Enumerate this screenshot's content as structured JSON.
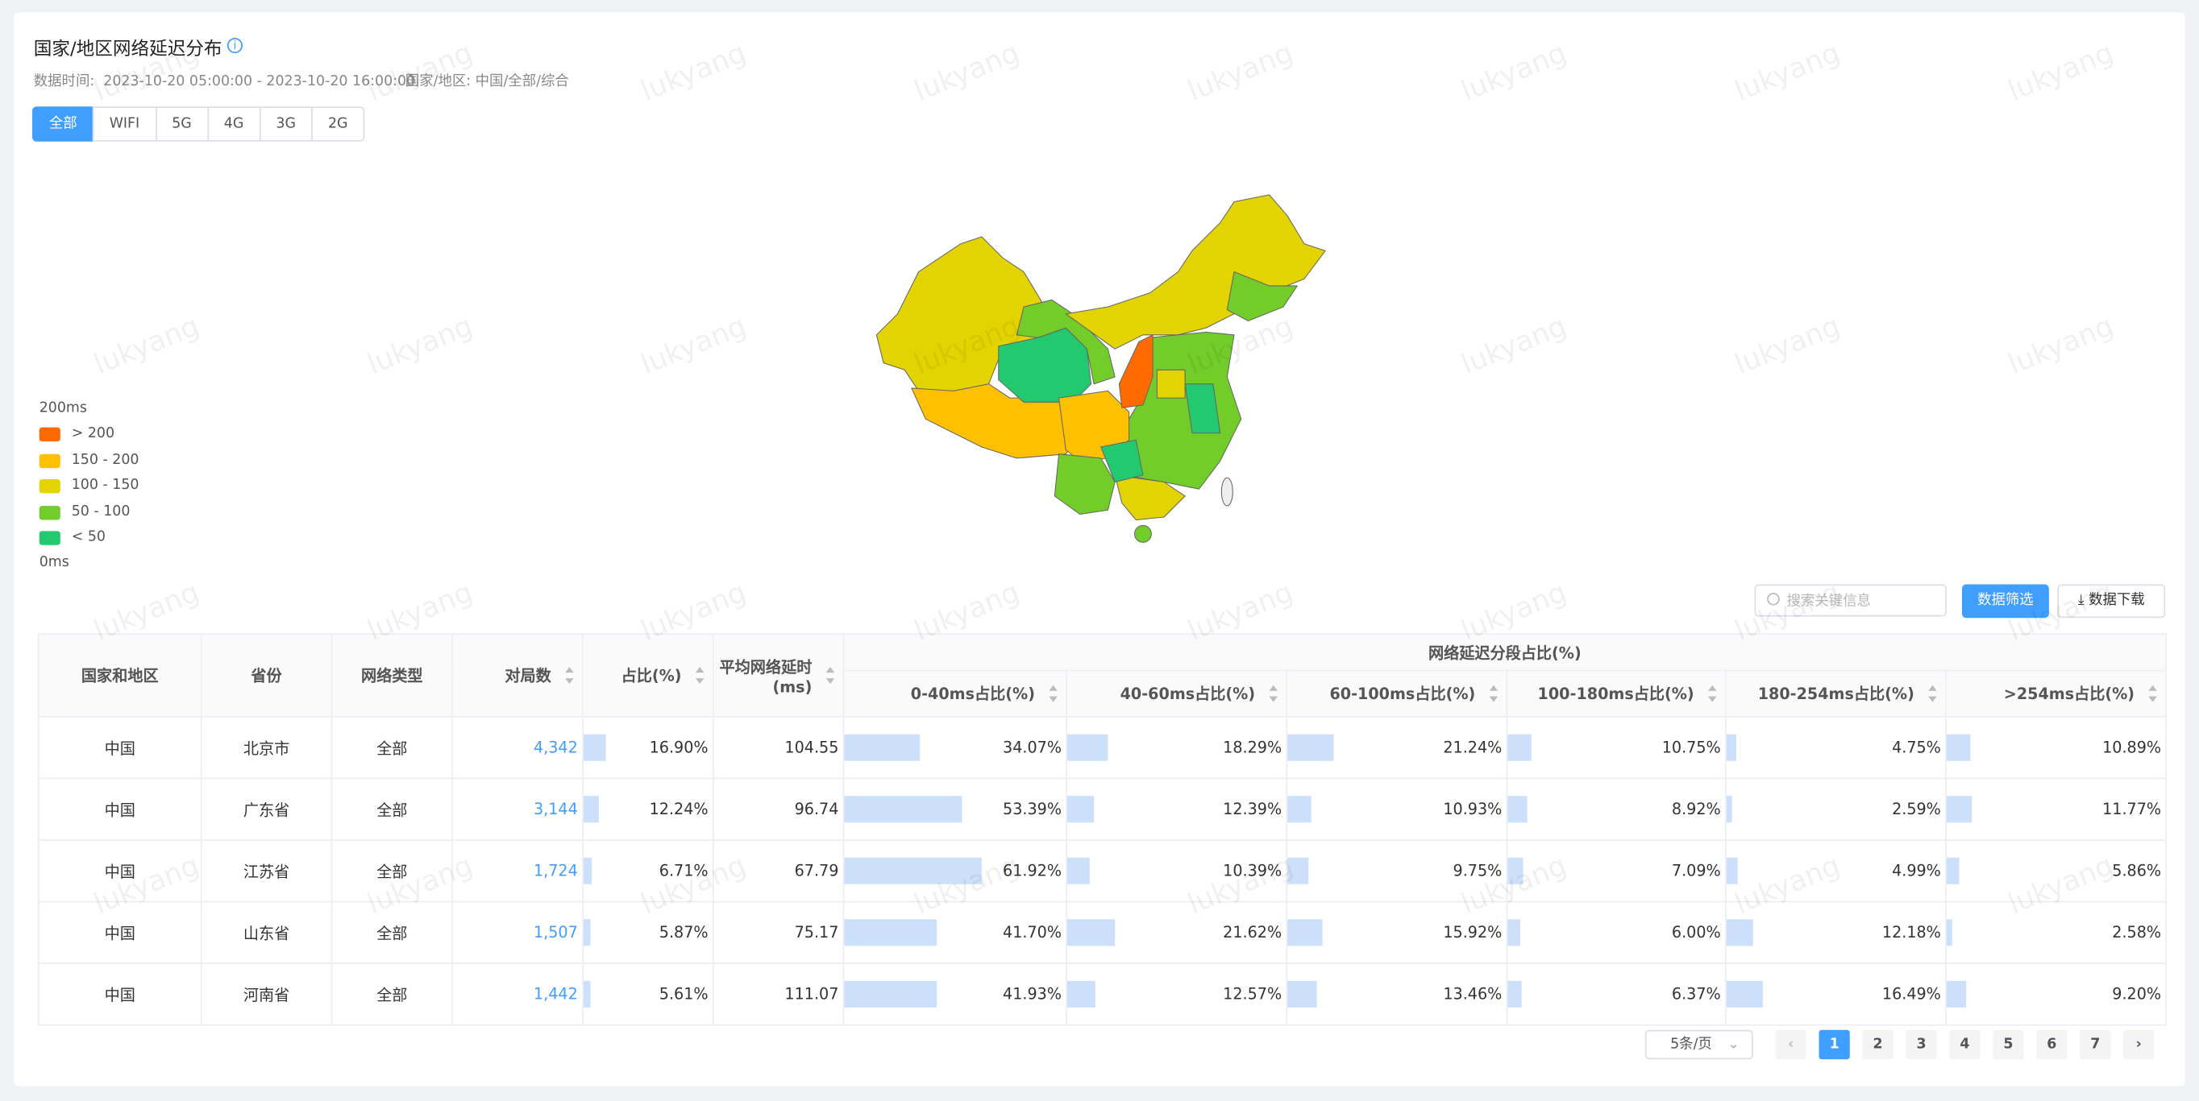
{
  "header": {
    "title": "国家/地区网络延迟分布",
    "time": "数据时间:  2023-10-20 05:00:00 - 2023-10-20 16:00:00",
    "region": "国家/地区: 中国/全部/综合"
  },
  "tabs": [
    "全部",
    "WIFI",
    "5G",
    "4G",
    "3G",
    "2G"
  ],
  "legend": {
    "max": "200ms",
    "min": "0ms",
    "items": [
      {
        "label": "> 200",
        "color": "#ff6a00"
      },
      {
        "label": "150 - 200",
        "color": "#ffc000"
      },
      {
        "label": "100 - 150",
        "color": "#e3d300"
      },
      {
        "label": "50 - 100",
        "color": "#72cc2a"
      },
      {
        "label": "< 50",
        "color": "#22c96e"
      }
    ]
  },
  "toolbar": {
    "search_placeholder": "搜索关键信息",
    "filter": "数据筛选",
    "download": "数据下载"
  },
  "table": {
    "columns": [
      "国家和地区",
      "省份",
      "网络类型",
      "对局数",
      "占比(%)",
      "平均网络延时(ms)"
    ],
    "group": {
      "title": "网络延迟分段占比(%)",
      "columns": [
        "0-40ms占比(%)",
        "40-60ms占比(%)",
        "60-100ms占比(%)",
        "100-180ms占比(%)",
        "180-254ms占比(%)",
        ">254ms占比(%)"
      ]
    },
    "rows": [
      [
        "中国",
        "北京市",
        "全部",
        "4,342",
        "16.90%",
        "104.55",
        "34.07%",
        "18.29%",
        "21.24%",
        "10.75%",
        "4.75%",
        "10.89%"
      ],
      [
        "中国",
        "广东省",
        "全部",
        "3,144",
        "12.24%",
        "96.74",
        "53.39%",
        "12.39%",
        "10.93%",
        "8.92%",
        "2.59%",
        "11.77%"
      ],
      [
        "中国",
        "江苏省",
        "全部",
        "1,724",
        "6.71%",
        "67.79",
        "61.92%",
        "10.39%",
        "9.75%",
        "7.09%",
        "4.99%",
        "5.86%"
      ],
      [
        "中国",
        "山东省",
        "全部",
        "1,507",
        "5.87%",
        "75.17",
        "41.70%",
        "21.62%",
        "15.92%",
        "6.00%",
        "12.18%",
        "2.58%"
      ],
      [
        "中国",
        "河南省",
        "全部",
        "1,442",
        "5.61%",
        "111.07",
        "41.93%",
        "12.57%",
        "13.46%",
        "6.37%",
        "16.49%",
        "9.20%"
      ]
    ]
  },
  "pagination": {
    "page_size": "5条/页",
    "pages": [
      "1",
      "2",
      "3",
      "4",
      "5",
      "6",
      "7"
    ]
  },
  "watermark": "lukyang"
}
